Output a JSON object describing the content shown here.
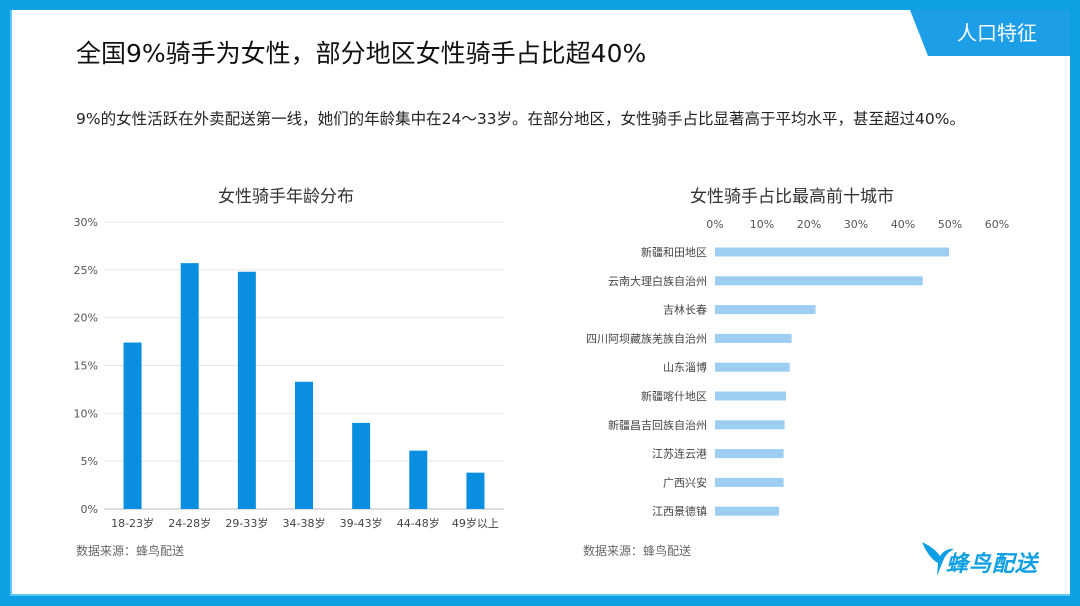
{
  "header": {
    "section_tab": "人口特征",
    "title": "全国9%骑手为女性，部分地区女性骑手占比超40%",
    "subtitle": "9%的女性活跃在外卖配送第一线，她们的年龄集中在24～33岁。在部分地区，女性骑手占比显著高于平均水平，甚至超过40%。"
  },
  "colors": {
    "frame": "#0f9fe3",
    "bar_left": "#0a8fe0",
    "bar_right": "#9dcdf0"
  },
  "logo": {
    "text": "蜂鸟配送",
    "icon": "hummingbird-icon"
  },
  "chart_data": [
    {
      "type": "bar",
      "title": "女性骑手年龄分布",
      "categories": [
        "18-23岁",
        "24-28岁",
        "29-33岁",
        "34-38岁",
        "39-43岁",
        "44-48岁",
        "49岁以上"
      ],
      "values": [
        17.4,
        25.7,
        24.8,
        13.3,
        9.0,
        6.1,
        3.8
      ],
      "ylim": [
        0,
        30
      ],
      "yticks": [
        "0%",
        "5%",
        "10%",
        "15%",
        "20%",
        "25%",
        "30%"
      ],
      "grid": true,
      "source": "数据来源：蜂鸟配送"
    },
    {
      "type": "bar",
      "orientation": "horizontal",
      "title": "女性骑手占比最高前十城市",
      "categories": [
        "新疆和田地区",
        "云南大理白族自治州",
        "吉林长春",
        "四川阿坝藏族羌族自治州",
        "山东淄博",
        "新疆喀什地区",
        "新疆昌吉回族自治州",
        "江苏连云港",
        "广西兴安",
        "江西景德镇"
      ],
      "values": [
        49.8,
        44.2,
        21.4,
        16.3,
        15.9,
        15.1,
        14.8,
        14.6,
        14.6,
        13.6
      ],
      "xlim": [
        0,
        60
      ],
      "xticks": [
        "0%",
        "10%",
        "20%",
        "30%",
        "40%",
        "50%",
        "60%"
      ],
      "source": "数据来源：蜂鸟配送"
    }
  ]
}
